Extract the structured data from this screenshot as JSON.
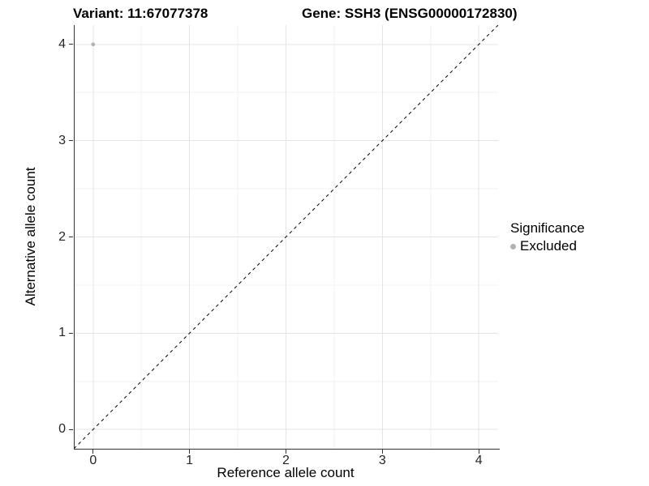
{
  "accent_colors": {
    "excluded_point": "#b3b3b3",
    "axis_line": "#333333",
    "major_gridline": "#e4e4e4",
    "minor_gridline": "#f2f2f2",
    "identity_line": "#000000",
    "background": "#ffffff"
  },
  "chart_data": {
    "type": "scatter",
    "title_left": "Variant: 11:67077378",
    "title_right": "Gene: SSH3 (ENSG00000172830)",
    "xlabel": "Reference allele count",
    "ylabel": "Alternative allele count",
    "xlim": [
      -0.2,
      4.2
    ],
    "ylim": [
      -0.2,
      4.2
    ],
    "x_ticks": [
      0,
      1,
      2,
      3,
      4
    ],
    "y_ticks": [
      0,
      1,
      2,
      3,
      4
    ],
    "x_tick_labels": [
      "0",
      "1",
      "2",
      "3",
      "4"
    ],
    "y_tick_labels": [
      "0",
      "1",
      "2",
      "3",
      "4"
    ],
    "minor_ticks": [
      0.5,
      1.5,
      2.5,
      3.5
    ],
    "grid": true,
    "points": [
      {
        "x": 0,
        "y": 4,
        "series": "Excluded",
        "color": "#b3b3b3",
        "radius": 2.4
      }
    ],
    "identity_line": {
      "style": "dashed",
      "from": -0.2,
      "to": 4.2,
      "color": "#000000"
    },
    "legend": {
      "title": "Significance",
      "position": "right",
      "entries": [
        {
          "label": "Excluded",
          "color": "#b3b3b3"
        }
      ]
    }
  }
}
